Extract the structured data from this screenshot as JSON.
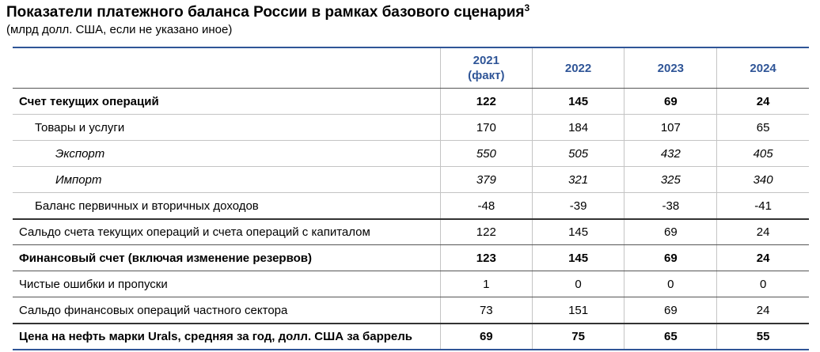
{
  "title": "Показатели платежного баланса России в рамках базового сценария",
  "title_note": "3",
  "subtitle": "(млрд долл. США, если не указано иное)",
  "columns": [
    {
      "line1": "2021",
      "line2": "(факт)"
    },
    {
      "line1": "2022",
      "line2": ""
    },
    {
      "line1": "2023",
      "line2": ""
    },
    {
      "line1": "2024",
      "line2": ""
    }
  ],
  "rows": [
    {
      "label": "Счет текущих операций",
      "values": [
        "122",
        "145",
        "69",
        "24"
      ]
    },
    {
      "label": "Товары и услуги",
      "values": [
        "170",
        "184",
        "107",
        "65"
      ]
    },
    {
      "label": "Экспорт",
      "values": [
        "550",
        "505",
        "432",
        "405"
      ]
    },
    {
      "label": "Импорт",
      "values": [
        "379",
        "321",
        "325",
        "340"
      ]
    },
    {
      "label": "Баланс первичных и вторичных доходов",
      "values": [
        "-48",
        "-39",
        "-38",
        "-41"
      ]
    },
    {
      "label": "Сальдо счета текущих операций и счета операций с капиталом",
      "values": [
        "122",
        "145",
        "69",
        "24"
      ]
    },
    {
      "label": "Финансовый счет (включая изменение резервов)",
      "values": [
        "123",
        "145",
        "69",
        "24"
      ]
    },
    {
      "label": "Чистые ошибки и пропуски",
      "values": [
        "1",
        "0",
        "0",
        "0"
      ]
    },
    {
      "label": "Сальдо финансовых операций частного сектора",
      "values": [
        "73",
        "151",
        "69",
        "24"
      ]
    },
    {
      "label": "Цена на нефть марки Urals, средняя за год, долл. США за баррель",
      "values": [
        "69",
        "75",
        "65",
        "55"
      ]
    }
  ]
}
